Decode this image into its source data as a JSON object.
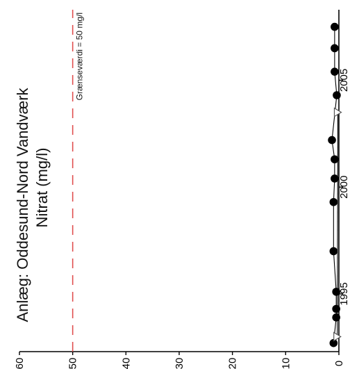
{
  "chart_data": {
    "type": "line",
    "title": "Anlæg: Oddesund-Nord Vandværk",
    "subtitle": "Nitrat (mg/l)",
    "xlabel": "",
    "ylabel": "",
    "xlim": [
      1992.3,
      2008.3
    ],
    "ylim": [
      0,
      60
    ],
    "x_ticks": [
      1995,
      2000,
      2005
    ],
    "y_ticks": [
      0,
      10,
      20,
      30,
      40,
      50,
      60
    ],
    "orientation": "rotated-90",
    "grid": false,
    "series": [
      {
        "marker": "circle",
        "color": "#000000",
        "x": [
          1992.7,
          1993.9,
          1994.3,
          1995.1,
          1997.0,
          1999.3,
          2000.4,
          2001.3,
          2002.2,
          2004.3,
          2005.4,
          2006.5,
          2007.5
        ],
        "y": [
          1.0,
          0.5,
          0.5,
          0.5,
          1.0,
          1.0,
          0.8,
          0.8,
          1.3,
          0.4,
          0.8,
          0.8,
          0.8
        ]
      },
      {
        "marker": "triangle-open",
        "color": "#555555",
        "x": [
          1993.0,
          2003.5
        ],
        "y": [
          0.3,
          0.2
        ]
      }
    ],
    "reference_lines": [
      {
        "value": 50,
        "label": "Grænseværdi = 50 mg/l",
        "color": "#e05050",
        "style": "dashed"
      }
    ]
  }
}
